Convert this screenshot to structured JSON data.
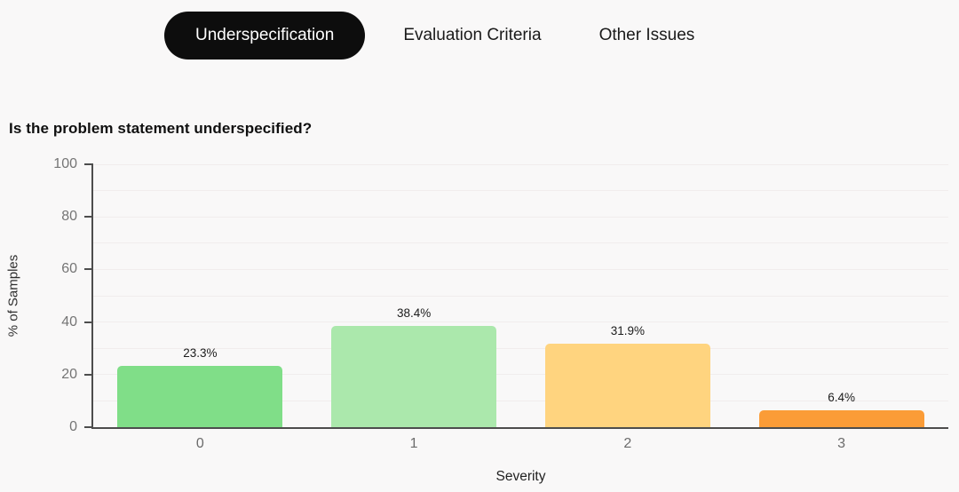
{
  "tabs": [
    {
      "label": "Underspecification",
      "active": true
    },
    {
      "label": "Evaluation Criteria",
      "active": false
    },
    {
      "label": "Other Issues",
      "active": false
    }
  ],
  "chart_data": {
    "type": "bar",
    "title": "Is the problem statement underspecified?",
    "xlabel": "Severity",
    "ylabel": "% of Samples",
    "categories": [
      "0",
      "1",
      "2",
      "3"
    ],
    "values": [
      23.3,
      38.4,
      31.9,
      6.4
    ],
    "value_labels": [
      "23.3%",
      "38.4%",
      "31.9%",
      "6.4%"
    ],
    "bar_colors": [
      "#80de88",
      "#abe8ac",
      "#ffd47f",
      "#fb9c37"
    ],
    "ylim": [
      0,
      100
    ],
    "yticks": [
      0,
      20,
      40,
      60,
      80,
      100
    ],
    "grid_step": 10,
    "grid": true,
    "legend": "none"
  },
  "colors": {
    "background": "#f9f8f8",
    "axis": "#4d4d4d",
    "gridline": "#f1eded",
    "tick_label": "#757575",
    "active_tab_bg": "#0d0d0d",
    "active_tab_text": "#ffffff",
    "tab_text": "#1a1a1a"
  }
}
